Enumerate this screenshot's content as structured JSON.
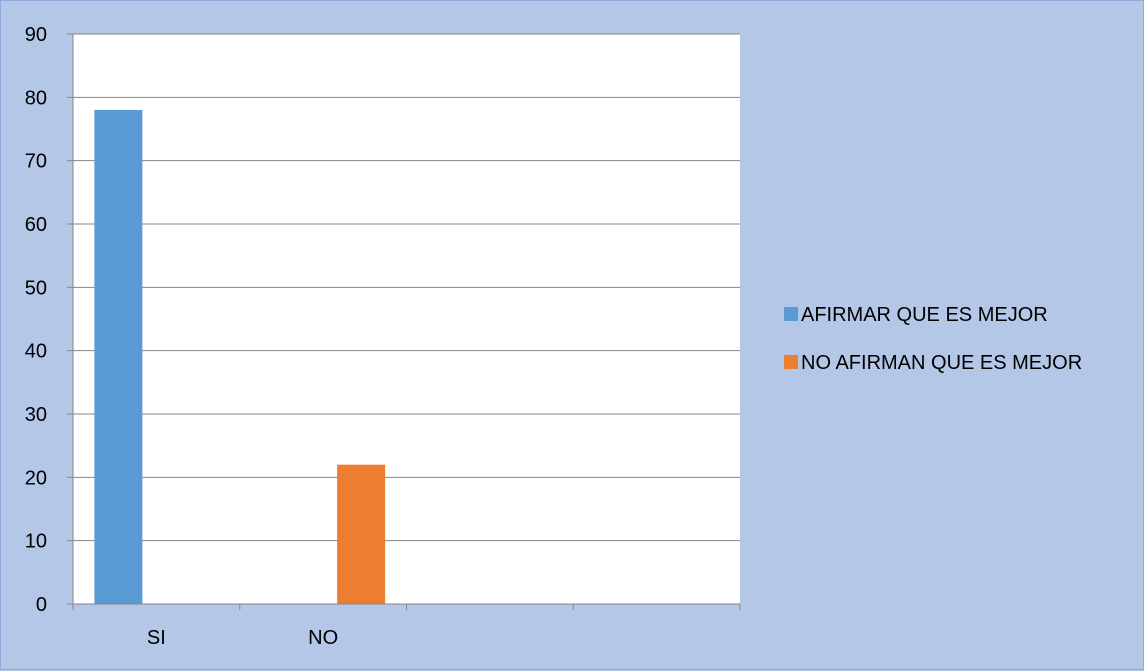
{
  "chart_data": {
    "type": "bar",
    "categories": [
      "SI",
      "NO",
      "",
      ""
    ],
    "series": [
      {
        "name": "AFIRMAR QUE ES MEJOR",
        "color": "#5b9bd5",
        "values": [
          78,
          0,
          0,
          0
        ]
      },
      {
        "name": "NO AFIRMAN QUE ES MEJOR",
        "color": "#ed7d31",
        "values": [
          0,
          22,
          0,
          0
        ]
      }
    ],
    "ylim": [
      0,
      90
    ],
    "yticks": [
      0,
      10,
      20,
      30,
      40,
      50,
      60,
      70,
      80,
      90
    ],
    "grid": true,
    "legend_position": "right",
    "plot_background": "#ffffff",
    "chart_background": "#b4c7e7",
    "gridline_color": "#868686"
  }
}
